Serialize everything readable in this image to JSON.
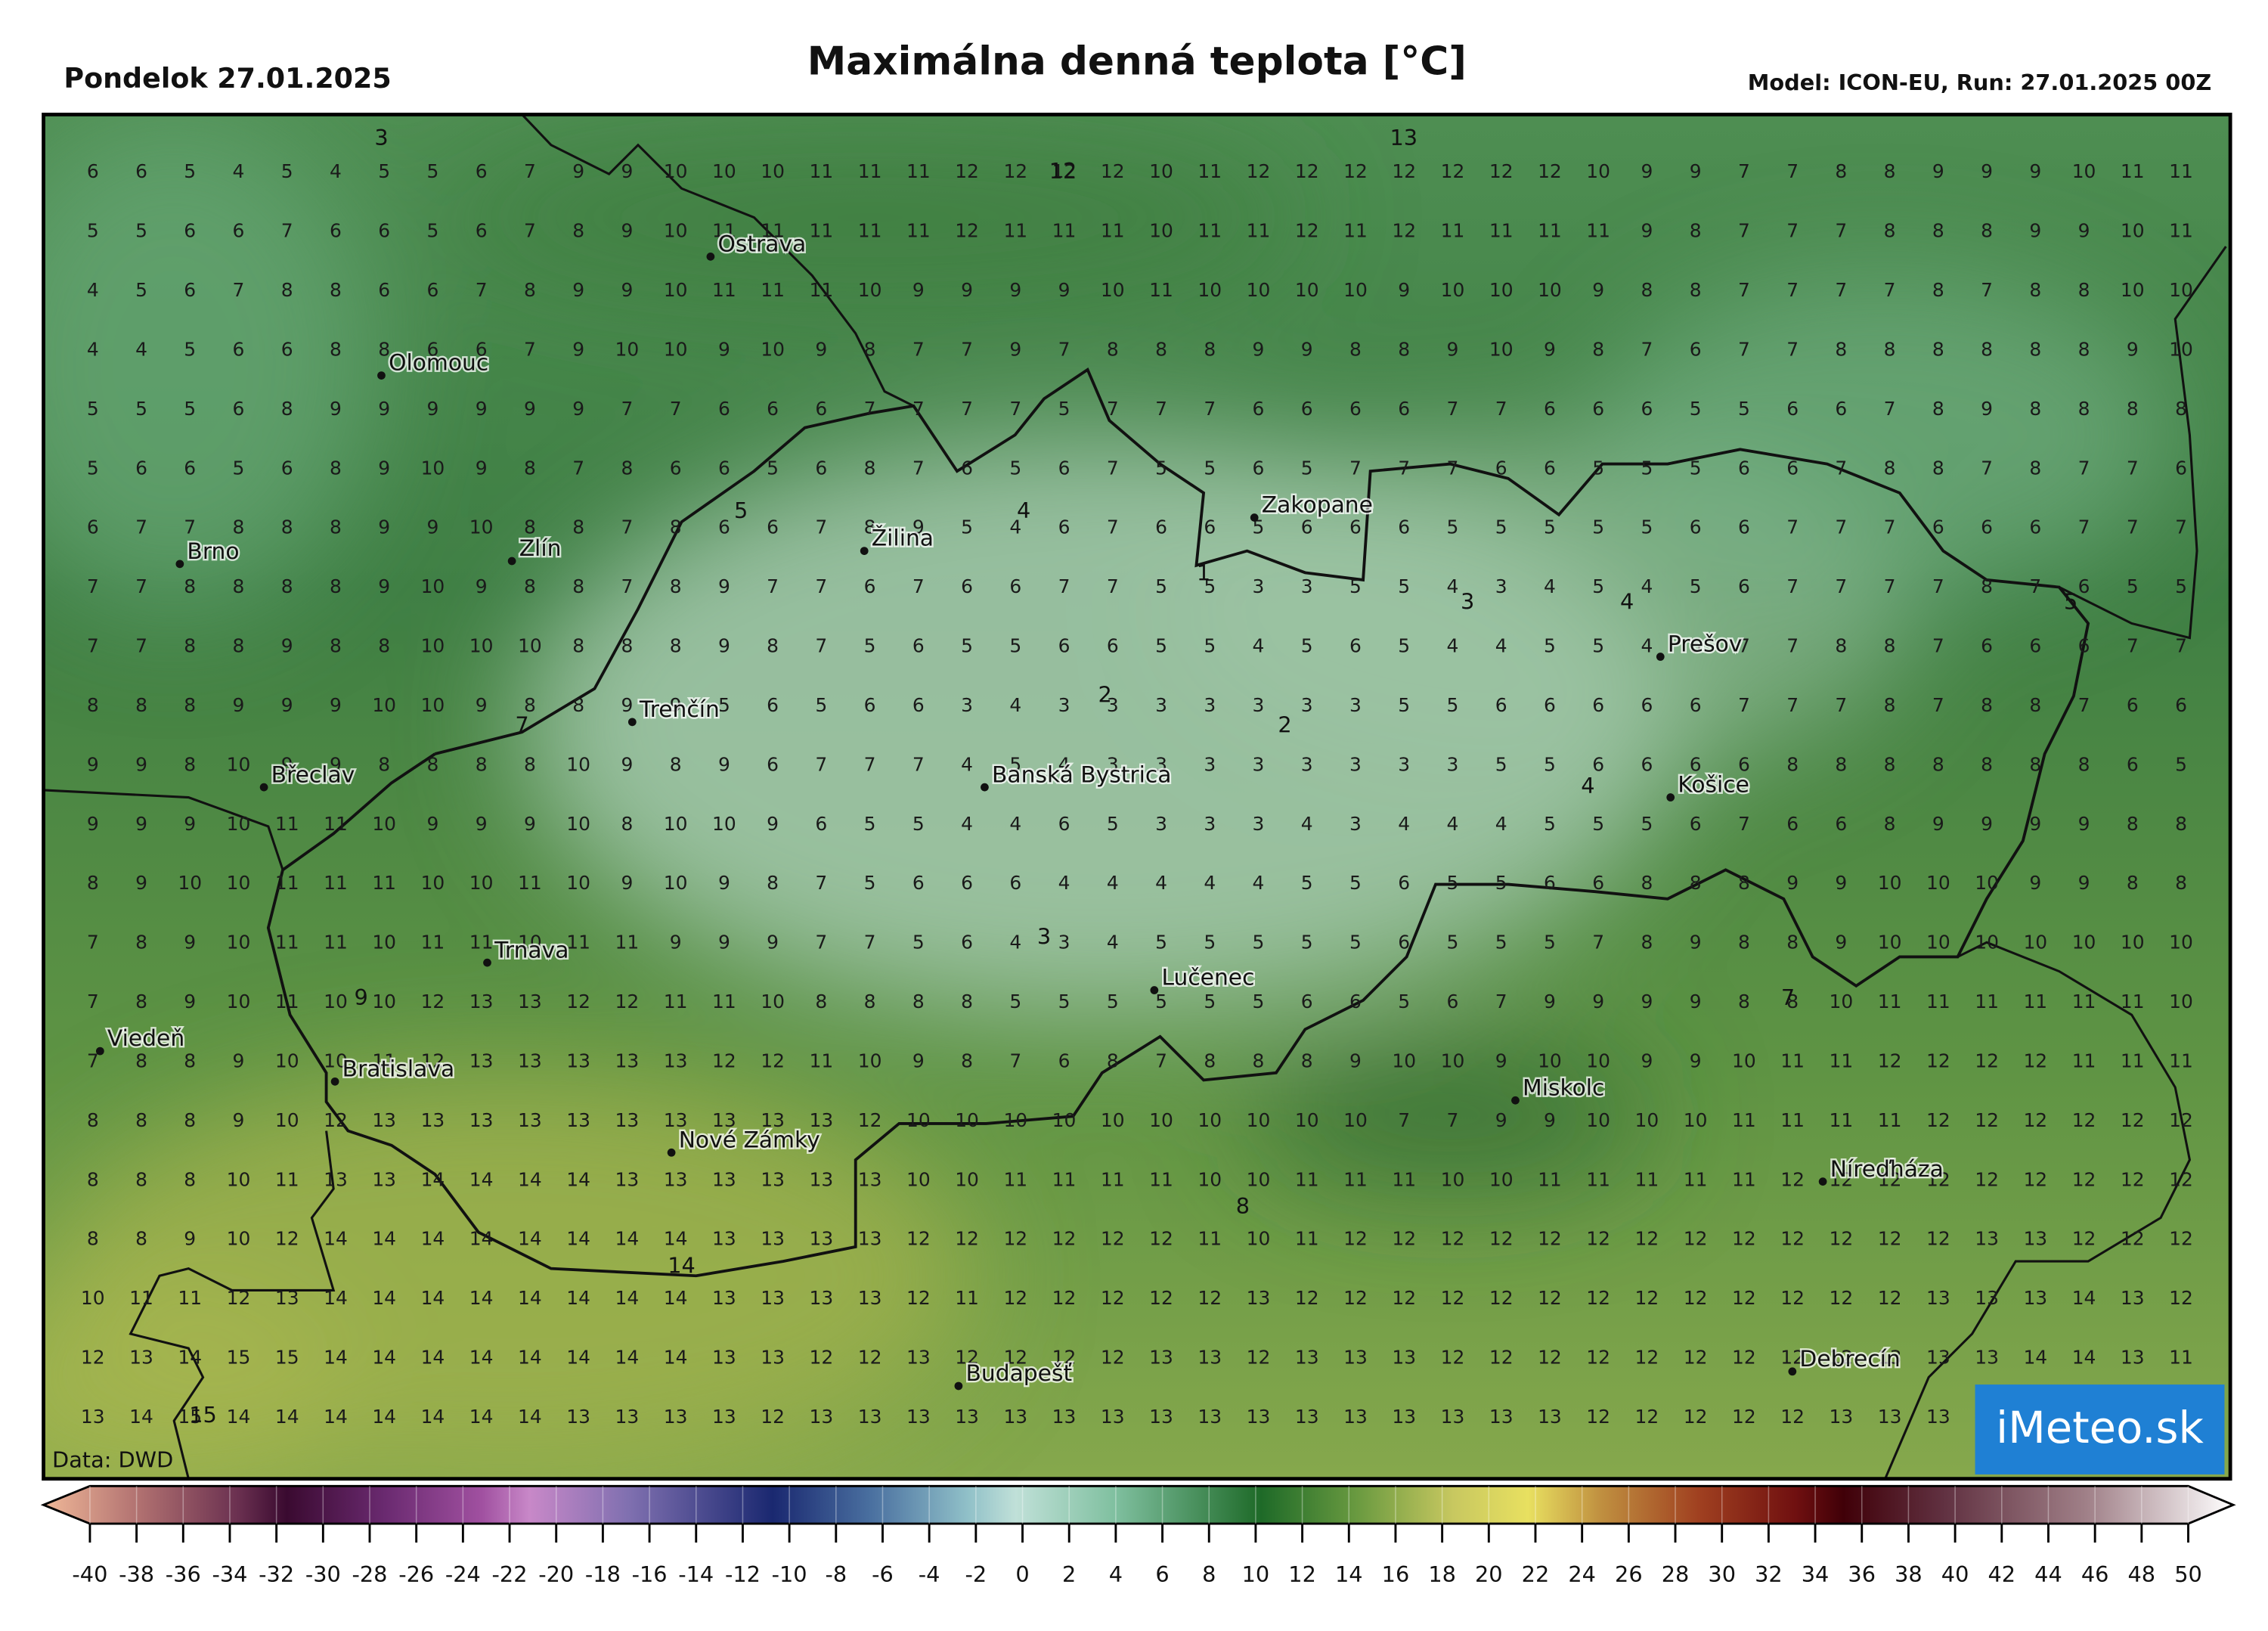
{
  "header": {
    "date": "Pondelok 27.01.2025",
    "title": "Maximálna denná teplota [°C]",
    "model": "Model: ICON-EU, Run: 27.01.2025 00Z"
  },
  "map": {
    "grid": [
      [
        6,
        6,
        5,
        4,
        5,
        4,
        5,
        5,
        6,
        7,
        9,
        9,
        10,
        10,
        10,
        11,
        11,
        11,
        12,
        12,
        12,
        12,
        10,
        11,
        12,
        12,
        12,
        12,
        12,
        12,
        12,
        10,
        9,
        9,
        7,
        7,
        8,
        8,
        9,
        9,
        9,
        10,
        11,
        11
      ],
      [
        5,
        5,
        6,
        6,
        7,
        6,
        6,
        5,
        6,
        7,
        8,
        9,
        10,
        11,
        11,
        11,
        11,
        11,
        12,
        11,
        11,
        11,
        10,
        11,
        11,
        12,
        11,
        12,
        11,
        11,
        11,
        11,
        9,
        8,
        7,
        7,
        7,
        8,
        8,
        8,
        9,
        9,
        10,
        11
      ],
      [
        4,
        5,
        6,
        7,
        8,
        8,
        6,
        6,
        7,
        8,
        9,
        9,
        10,
        11,
        11,
        11,
        10,
        9,
        9,
        9,
        9,
        10,
        11,
        10,
        10,
        10,
        10,
        9,
        10,
        10,
        10,
        9,
        8,
        8,
        7,
        7,
        7,
        7,
        8,
        7,
        8,
        8,
        10,
        10
      ],
      [
        4,
        4,
        5,
        6,
        6,
        8,
        8,
        6,
        6,
        7,
        9,
        10,
        10,
        9,
        10,
        9,
        8,
        7,
        7,
        9,
        7,
        8,
        8,
        8,
        9,
        9,
        8,
        8,
        9,
        10,
        9,
        8,
        7,
        6,
        7,
        7,
        8,
        8,
        8,
        8,
        8,
        8,
        9,
        10
      ],
      [
        5,
        5,
        5,
        6,
        8,
        9,
        9,
        9,
        9,
        9,
        9,
        7,
        7,
        6,
        6,
        6,
        7,
        7,
        7,
        7,
        5,
        7,
        7,
        7,
        6,
        6,
        6,
        6,
        7,
        7,
        6,
        6,
        6,
        5,
        5,
        6,
        6,
        7,
        8,
        9,
        8,
        8,
        8,
        8
      ],
      [
        5,
        6,
        6,
        5,
        6,
        8,
        9,
        10,
        9,
        8,
        7,
        8,
        6,
        6,
        5,
        6,
        8,
        7,
        6,
        5,
        6,
        7,
        5,
        5,
        6,
        5,
        7,
        7,
        7,
        6,
        6,
        5,
        5,
        5,
        6,
        6,
        7,
        8,
        8,
        7,
        8,
        7,
        7,
        6
      ],
      [
        6,
        7,
        7,
        8,
        8,
        8,
        9,
        9,
        10,
        8,
        8,
        7,
        8,
        6,
        6,
        7,
        8,
        9,
        5,
        4,
        6,
        7,
        6,
        6,
        5,
        6,
        6,
        6,
        5,
        5,
        5,
        5,
        5,
        6,
        6,
        7,
        7,
        7,
        6,
        6,
        6,
        7,
        7,
        7
      ],
      [
        7,
        7,
        8,
        8,
        8,
        8,
        9,
        10,
        9,
        8,
        8,
        7,
        8,
        9,
        7,
        7,
        6,
        7,
        6,
        6,
        7,
        7,
        5,
        5,
        3,
        3,
        5,
        5,
        4,
        3,
        4,
        5,
        4,
        5,
        6,
        7,
        7,
        7,
        7,
        8,
        7,
        6,
        5,
        5
      ],
      [
        7,
        7,
        8,
        8,
        9,
        8,
        8,
        10,
        10,
        10,
        8,
        8,
        8,
        9,
        8,
        7,
        5,
        6,
        5,
        5,
        6,
        6,
        5,
        5,
        4,
        5,
        6,
        5,
        4,
        4,
        5,
        5,
        4,
        6,
        7,
        7,
        8,
        8,
        7,
        6,
        6,
        6,
        7,
        7
      ],
      [
        8,
        8,
        8,
        9,
        9,
        9,
        10,
        10,
        9,
        8,
        8,
        9,
        9,
        5,
        6,
        5,
        6,
        6,
        3,
        4,
        3,
        3,
        3,
        3,
        3,
        3,
        3,
        5,
        5,
        6,
        6,
        6,
        6,
        6,
        7,
        7,
        7,
        8,
        7,
        8,
        8,
        7,
        6,
        6
      ],
      [
        9,
        9,
        8,
        10,
        9,
        9,
        8,
        8,
        8,
        8,
        10,
        9,
        8,
        9,
        6,
        7,
        7,
        7,
        4,
        5,
        4,
        3,
        3,
        3,
        3,
        3,
        3,
        3,
        3,
        5,
        5,
        6,
        6,
        6,
        6,
        8,
        8,
        8,
        8,
        8,
        8,
        8,
        6,
        5
      ],
      [
        9,
        9,
        9,
        10,
        11,
        11,
        10,
        9,
        9,
        9,
        10,
        8,
        10,
        10,
        9,
        6,
        5,
        5,
        4,
        4,
        6,
        5,
        3,
        3,
        3,
        4,
        3,
        4,
        4,
        4,
        5,
        5,
        5,
        6,
        7,
        6,
        6,
        8,
        9,
        9,
        9,
        9,
        8,
        8
      ],
      [
        8,
        9,
        10,
        10,
        11,
        11,
        11,
        10,
        10,
        11,
        10,
        9,
        10,
        9,
        8,
        7,
        5,
        6,
        6,
        6,
        4,
        4,
        4,
        4,
        4,
        5,
        5,
        6,
        5,
        5,
        6,
        6,
        8,
        8,
        8,
        9,
        9,
        10,
        10,
        10,
        9,
        9,
        8,
        8
      ],
      [
        7,
        8,
        9,
        10,
        11,
        11,
        10,
        11,
        11,
        10,
        11,
        11,
        9,
        9,
        9,
        7,
        7,
        5,
        6,
        4,
        3,
        4,
        5,
        5,
        5,
        5,
        5,
        6,
        5,
        5,
        5,
        7,
        8,
        9,
        8,
        8,
        9,
        10,
        10,
        10,
        10,
        10,
        10,
        10
      ],
      [
        7,
        8,
        9,
        10,
        11,
        10,
        10,
        12,
        13,
        13,
        12,
        12,
        11,
        11,
        10,
        8,
        8,
        8,
        8,
        5,
        5,
        5,
        5,
        5,
        5,
        6,
        6,
        5,
        6,
        7,
        9,
        9,
        9,
        9,
        8,
        8,
        10,
        11,
        11,
        11,
        11,
        11,
        11,
        10
      ],
      [
        7,
        8,
        8,
        9,
        10,
        10,
        11,
        12,
        13,
        13,
        13,
        13,
        13,
        12,
        12,
        11,
        10,
        9,
        8,
        7,
        6,
        8,
        7,
        8,
        8,
        8,
        9,
        10,
        10,
        9,
        10,
        10,
        9,
        9,
        10,
        11,
        11,
        12,
        12,
        12,
        12,
        11,
        11,
        11
      ],
      [
        8,
        8,
        8,
        9,
        10,
        12,
        13,
        13,
        13,
        13,
        13,
        13,
        13,
        13,
        13,
        13,
        12,
        10,
        10,
        10,
        10,
        10,
        10,
        10,
        10,
        10,
        10,
        7,
        7,
        9,
        9,
        10,
        10,
        10,
        11,
        11,
        11,
        11,
        12,
        12,
        12,
        12,
        12,
        12
      ],
      [
        8,
        8,
        8,
        10,
        11,
        13,
        13,
        14,
        14,
        14,
        14,
        13,
        13,
        13,
        13,
        13,
        13,
        10,
        10,
        11,
        11,
        11,
        11,
        10,
        10,
        11,
        11,
        11,
        10,
        10,
        11,
        11,
        11,
        11,
        11,
        12,
        12,
        12,
        12,
        12,
        12,
        12,
        12,
        12
      ],
      [
        8,
        8,
        9,
        10,
        12,
        14,
        14,
        14,
        14,
        14,
        14,
        14,
        14,
        13,
        13,
        13,
        13,
        12,
        12,
        12,
        12,
        12,
        12,
        11,
        10,
        11,
        12,
        12,
        12,
        12,
        12,
        12,
        12,
        12,
        12,
        12,
        12,
        12,
        12,
        13,
        13,
        12,
        12,
        12
      ],
      [
        10,
        11,
        11,
        12,
        13,
        14,
        14,
        14,
        14,
        14,
        14,
        14,
        14,
        13,
        13,
        13,
        13,
        12,
        11,
        12,
        12,
        12,
        12,
        12,
        13,
        12,
        12,
        12,
        12,
        12,
        12,
        12,
        12,
        12,
        12,
        12,
        12,
        12,
        13,
        13,
        13,
        14,
        13,
        12
      ],
      [
        12,
        13,
        14,
        15,
        15,
        14,
        14,
        14,
        14,
        14,
        14,
        14,
        14,
        13,
        13,
        12,
        12,
        13,
        12,
        12,
        12,
        12,
        13,
        13,
        12,
        13,
        13,
        13,
        12,
        12,
        12,
        12,
        12,
        12,
        12,
        12,
        12,
        13,
        13,
        13,
        14,
        14,
        13,
        11
      ],
      [
        13,
        14,
        15,
        14,
        14,
        14,
        14,
        14,
        14,
        14,
        13,
        13,
        13,
        13,
        12,
        13,
        13,
        13,
        13,
        13,
        13,
        13,
        13,
        13,
        13,
        13,
        13,
        13,
        13,
        13,
        13,
        12,
        12,
        12,
        12,
        12,
        13,
        13,
        13
      ]
    ],
    "extrema": [
      3,
      13,
      12,
      5,
      4,
      1,
      3,
      4,
      5,
      2,
      2,
      7,
      4,
      3,
      9,
      7,
      8,
      14,
      15
    ],
    "cities": [
      "Ostrava",
      "Olomouc",
      "Brno",
      "Zlín",
      "Žilina",
      "Zakopane",
      "Prešov",
      "Trenčín",
      "Břeclav",
      "Banská Bystrica",
      "Košice",
      "Trnava",
      "Lučenec",
      "Viedeň",
      "Bratislava",
      "Miskolc",
      "Nové Zámky",
      "Níreďháza",
      "Debrecín",
      "Budapešť"
    ],
    "credit": "Data: DWD",
    "logo": "iMeteo.sk"
  },
  "colorbar": {
    "ticks": [
      -40,
      -38,
      -36,
      -34,
      -32,
      -30,
      -28,
      -26,
      -24,
      -22,
      -20,
      -18,
      -16,
      -14,
      -12,
      -10,
      -8,
      -6,
      -4,
      -2,
      0,
      2,
      4,
      6,
      8,
      10,
      12,
      14,
      16,
      18,
      20,
      22,
      24,
      26,
      28,
      30,
      32,
      34,
      36,
      38,
      40,
      42,
      44,
      46,
      48,
      50
    ]
  }
}
